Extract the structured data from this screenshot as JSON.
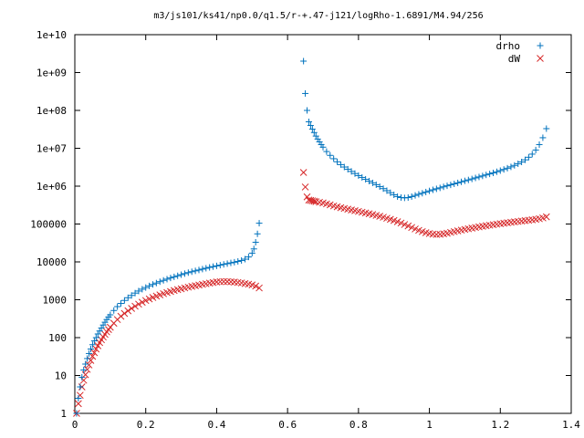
{
  "chart_data": {
    "type": "scatter",
    "title": "m3/js101/ks41/np0.0/q1.5/r-+.47-j121/logRho-1.6891/M4.94/256",
    "xlabel": "",
    "ylabel": "",
    "xlim": [
      0,
      1.4
    ],
    "ylim": [
      1,
      10000000000
    ],
    "yscale": "log",
    "grid": false,
    "legend_position": "top-right",
    "x_ticks": [
      {
        "value": 0,
        "label": "0"
      },
      {
        "value": 0.2,
        "label": "0.2"
      },
      {
        "value": 0.4,
        "label": "0.4"
      },
      {
        "value": 0.6,
        "label": "0.6"
      },
      {
        "value": 0.8,
        "label": "0.8"
      },
      {
        "value": 1.0,
        "label": "1"
      },
      {
        "value": 1.2,
        "label": "1.2"
      },
      {
        "value": 1.4,
        "label": "1.4"
      }
    ],
    "y_ticks": [
      {
        "value": 1,
        "label": "1"
      },
      {
        "value": 10,
        "label": "10"
      },
      {
        "value": 100,
        "label": "100"
      },
      {
        "value": 1000,
        "label": "1000"
      },
      {
        "value": 10000,
        "label": "10000"
      },
      {
        "value": 100000,
        "label": "100000"
      },
      {
        "value": 1000000,
        "label": "1e+06"
      },
      {
        "value": 10000000,
        "label": "1e+07"
      },
      {
        "value": 100000000,
        "label": "1e+08"
      },
      {
        "value": 1000000000,
        "label": "1e+09"
      },
      {
        "value": 10000000000,
        "label": "1e+10"
      }
    ],
    "series": [
      {
        "name": "drho",
        "marker": "plus",
        "color": "#0072bd",
        "points": [
          [
            0.005,
            1
          ],
          [
            0.01,
            2.5
          ],
          [
            0.015,
            5
          ],
          [
            0.02,
            9
          ],
          [
            0.025,
            14
          ],
          [
            0.03,
            20
          ],
          [
            0.035,
            28
          ],
          [
            0.04,
            38
          ],
          [
            0.045,
            50
          ],
          [
            0.05,
            65
          ],
          [
            0.055,
            82
          ],
          [
            0.06,
            100
          ],
          [
            0.065,
            125
          ],
          [
            0.07,
            150
          ],
          [
            0.075,
            180
          ],
          [
            0.08,
            215
          ],
          [
            0.085,
            255
          ],
          [
            0.09,
            300
          ],
          [
            0.095,
            350
          ],
          [
            0.1,
            400
          ],
          [
            0.11,
            520
          ],
          [
            0.12,
            660
          ],
          [
            0.13,
            800
          ],
          [
            0.14,
            960
          ],
          [
            0.15,
            1130
          ],
          [
            0.16,
            1300
          ],
          [
            0.17,
            1500
          ],
          [
            0.18,
            1700
          ],
          [
            0.19,
            1900
          ],
          [
            0.2,
            2100
          ],
          [
            0.21,
            2320
          ],
          [
            0.22,
            2540
          ],
          [
            0.23,
            2760
          ],
          [
            0.24,
            3000
          ],
          [
            0.25,
            3250
          ],
          [
            0.26,
            3500
          ],
          [
            0.27,
            3760
          ],
          [
            0.28,
            4030
          ],
          [
            0.29,
            4300
          ],
          [
            0.3,
            4600
          ],
          [
            0.31,
            4900
          ],
          [
            0.32,
            5200
          ],
          [
            0.33,
            5500
          ],
          [
            0.34,
            5800
          ],
          [
            0.35,
            6100
          ],
          [
            0.36,
            6450
          ],
          [
            0.37,
            6800
          ],
          [
            0.38,
            7150
          ],
          [
            0.39,
            7500
          ],
          [
            0.4,
            7850
          ],
          [
            0.41,
            8200
          ],
          [
            0.42,
            8600
          ],
          [
            0.43,
            9000
          ],
          [
            0.44,
            9400
          ],
          [
            0.45,
            9800
          ],
          [
            0.46,
            10300
          ],
          [
            0.47,
            10900
          ],
          [
            0.48,
            11800
          ],
          [
            0.49,
            13500
          ],
          [
            0.5,
            17000
          ],
          [
            0.505,
            22000
          ],
          [
            0.51,
            33000
          ],
          [
            0.515,
            55000
          ],
          [
            0.52,
            105000
          ],
          [
            0.645,
            2000000000
          ],
          [
            0.65,
            280000000
          ],
          [
            0.655,
            100000000
          ],
          [
            0.66,
            50000000
          ],
          [
            0.665,
            40000000
          ],
          [
            0.67,
            32000000
          ],
          [
            0.675,
            26000000
          ],
          [
            0.68,
            21000000
          ],
          [
            0.685,
            17500000
          ],
          [
            0.69,
            14800000
          ],
          [
            0.695,
            12500000
          ],
          [
            0.7,
            10700000
          ],
          [
            0.71,
            8200000
          ],
          [
            0.72,
            6500000
          ],
          [
            0.73,
            5300000
          ],
          [
            0.74,
            4400000
          ],
          [
            0.75,
            3700000
          ],
          [
            0.76,
            3200000
          ],
          [
            0.77,
            2800000
          ],
          [
            0.78,
            2450000
          ],
          [
            0.79,
            2150000
          ],
          [
            0.8,
            1900000
          ],
          [
            0.81,
            1700000
          ],
          [
            0.82,
            1520000
          ],
          [
            0.83,
            1360000
          ],
          [
            0.84,
            1220000
          ],
          [
            0.85,
            1090000
          ],
          [
            0.86,
            970000
          ],
          [
            0.87,
            860000
          ],
          [
            0.88,
            760000
          ],
          [
            0.89,
            670000
          ],
          [
            0.9,
            590000
          ],
          [
            0.91,
            530000
          ],
          [
            0.92,
            500000
          ],
          [
            0.93,
            490000
          ],
          [
            0.94,
            500000
          ],
          [
            0.95,
            530000
          ],
          [
            0.96,
            570000
          ],
          [
            0.97,
            610000
          ],
          [
            0.98,
            650000
          ],
          [
            0.99,
            700000
          ],
          [
            1.0,
            750000
          ],
          [
            1.01,
            800000
          ],
          [
            1.02,
            850000
          ],
          [
            1.03,
            900000
          ],
          [
            1.04,
            960000
          ],
          [
            1.05,
            1020000
          ],
          [
            1.06,
            1080000
          ],
          [
            1.07,
            1150000
          ],
          [
            1.08,
            1220000
          ],
          [
            1.09,
            1300000
          ],
          [
            1.1,
            1380000
          ],
          [
            1.11,
            1460000
          ],
          [
            1.12,
            1550000
          ],
          [
            1.13,
            1650000
          ],
          [
            1.14,
            1750000
          ],
          [
            1.15,
            1860000
          ],
          [
            1.16,
            1980000
          ],
          [
            1.17,
            2100000
          ],
          [
            1.18,
            2240000
          ],
          [
            1.19,
            2400000
          ],
          [
            1.2,
            2570000
          ],
          [
            1.21,
            2760000
          ],
          [
            1.22,
            2980000
          ],
          [
            1.23,
            3230000
          ],
          [
            1.24,
            3530000
          ],
          [
            1.25,
            3900000
          ],
          [
            1.26,
            4350000
          ],
          [
            1.27,
            4950000
          ],
          [
            1.28,
            5800000
          ],
          [
            1.29,
            7000000
          ],
          [
            1.3,
            9000000
          ],
          [
            1.31,
            12500000
          ],
          [
            1.32,
            19000000
          ],
          [
            1.33,
            33000000
          ]
        ]
      },
      {
        "name": "dW",
        "marker": "cross",
        "color": "#d62728",
        "points": [
          [
            0.005,
            1
          ],
          [
            0.01,
            1.8
          ],
          [
            0.015,
            3
          ],
          [
            0.02,
            5
          ],
          [
            0.025,
            7.5
          ],
          [
            0.03,
            10.5
          ],
          [
            0.035,
            14.5
          ],
          [
            0.04,
            19
          ],
          [
            0.045,
            25
          ],
          [
            0.05,
            32
          ],
          [
            0.055,
            40
          ],
          [
            0.06,
            50
          ],
          [
            0.065,
            61
          ],
          [
            0.07,
            74
          ],
          [
            0.075,
            88
          ],
          [
            0.08,
            104
          ],
          [
            0.085,
            122
          ],
          [
            0.09,
            142
          ],
          [
            0.095,
            164
          ],
          [
            0.1,
            188
          ],
          [
            0.11,
            240
          ],
          [
            0.12,
            300
          ],
          [
            0.13,
            365
          ],
          [
            0.14,
            435
          ],
          [
            0.15,
            510
          ],
          [
            0.16,
            590
          ],
          [
            0.17,
            675
          ],
          [
            0.18,
            765
          ],
          [
            0.19,
            860
          ],
          [
            0.2,
            955
          ],
          [
            0.21,
            1050
          ],
          [
            0.22,
            1150
          ],
          [
            0.23,
            1250
          ],
          [
            0.24,
            1350
          ],
          [
            0.25,
            1450
          ],
          [
            0.26,
            1550
          ],
          [
            0.27,
            1650
          ],
          [
            0.28,
            1750
          ],
          [
            0.29,
            1850
          ],
          [
            0.3,
            1950
          ],
          [
            0.31,
            2050
          ],
          [
            0.32,
            2150
          ],
          [
            0.33,
            2250
          ],
          [
            0.34,
            2350
          ],
          [
            0.35,
            2450
          ],
          [
            0.36,
            2550
          ],
          [
            0.37,
            2650
          ],
          [
            0.38,
            2750
          ],
          [
            0.39,
            2850
          ],
          [
            0.4,
            2950
          ],
          [
            0.41,
            3000
          ],
          [
            0.42,
            3020
          ],
          [
            0.43,
            3010
          ],
          [
            0.44,
            2980
          ],
          [
            0.45,
            2930
          ],
          [
            0.46,
            2860
          ],
          [
            0.47,
            2780
          ],
          [
            0.48,
            2680
          ],
          [
            0.49,
            2580
          ],
          [
            0.5,
            2460
          ],
          [
            0.51,
            2300
          ],
          [
            0.52,
            2050
          ],
          [
            0.645,
            2300000
          ],
          [
            0.65,
            950000
          ],
          [
            0.655,
            520000
          ],
          [
            0.66,
            430000
          ],
          [
            0.665,
            420000
          ],
          [
            0.67,
            410000
          ],
          [
            0.675,
            400000
          ],
          [
            0.68,
            390000
          ],
          [
            0.69,
            375000
          ],
          [
            0.7,
            360000
          ],
          [
            0.71,
            340000
          ],
          [
            0.72,
            320000
          ],
          [
            0.73,
            300000
          ],
          [
            0.74,
            285000
          ],
          [
            0.75,
            270000
          ],
          [
            0.76,
            258000
          ],
          [
            0.77,
            246000
          ],
          [
            0.78,
            235000
          ],
          [
            0.79,
            225000
          ],
          [
            0.8,
            215000
          ],
          [
            0.81,
            205000
          ],
          [
            0.82,
            196000
          ],
          [
            0.83,
            187000
          ],
          [
            0.84,
            178000
          ],
          [
            0.85,
            169000
          ],
          [
            0.86,
            160000
          ],
          [
            0.87,
            151000
          ],
          [
            0.88,
            142000
          ],
          [
            0.89,
            133000
          ],
          [
            0.9,
            124000
          ],
          [
            0.91,
            115000
          ],
          [
            0.92,
            106000
          ],
          [
            0.93,
            97000
          ],
          [
            0.94,
            89000
          ],
          [
            0.95,
            81000
          ],
          [
            0.96,
            74000
          ],
          [
            0.97,
            68000
          ],
          [
            0.98,
            63000
          ],
          [
            0.99,
            59000
          ],
          [
            1.0,
            56000
          ],
          [
            1.01,
            54000
          ],
          [
            1.02,
            53000
          ],
          [
            1.03,
            53500
          ],
          [
            1.04,
            55000
          ],
          [
            1.05,
            57000
          ],
          [
            1.06,
            60000
          ],
          [
            1.07,
            63000
          ],
          [
            1.08,
            66000
          ],
          [
            1.09,
            69000
          ],
          [
            1.1,
            72000
          ],
          [
            1.11,
            75000
          ],
          [
            1.12,
            78000
          ],
          [
            1.13,
            81000
          ],
          [
            1.14,
            84000
          ],
          [
            1.15,
            87000
          ],
          [
            1.16,
            90000
          ],
          [
            1.17,
            93000
          ],
          [
            1.18,
            96000
          ],
          [
            1.19,
            99000
          ],
          [
            1.2,
            102000
          ],
          [
            1.21,
            105000
          ],
          [
            1.22,
            108000
          ],
          [
            1.23,
            111000
          ],
          [
            1.24,
            114000
          ],
          [
            1.25,
            117000
          ],
          [
            1.26,
            120000
          ],
          [
            1.27,
            123000
          ],
          [
            1.28,
            126000
          ],
          [
            1.29,
            129000
          ],
          [
            1.3,
            133000
          ],
          [
            1.31,
            138000
          ],
          [
            1.32,
            145000
          ],
          [
            1.33,
            155000
          ]
        ]
      }
    ]
  }
}
